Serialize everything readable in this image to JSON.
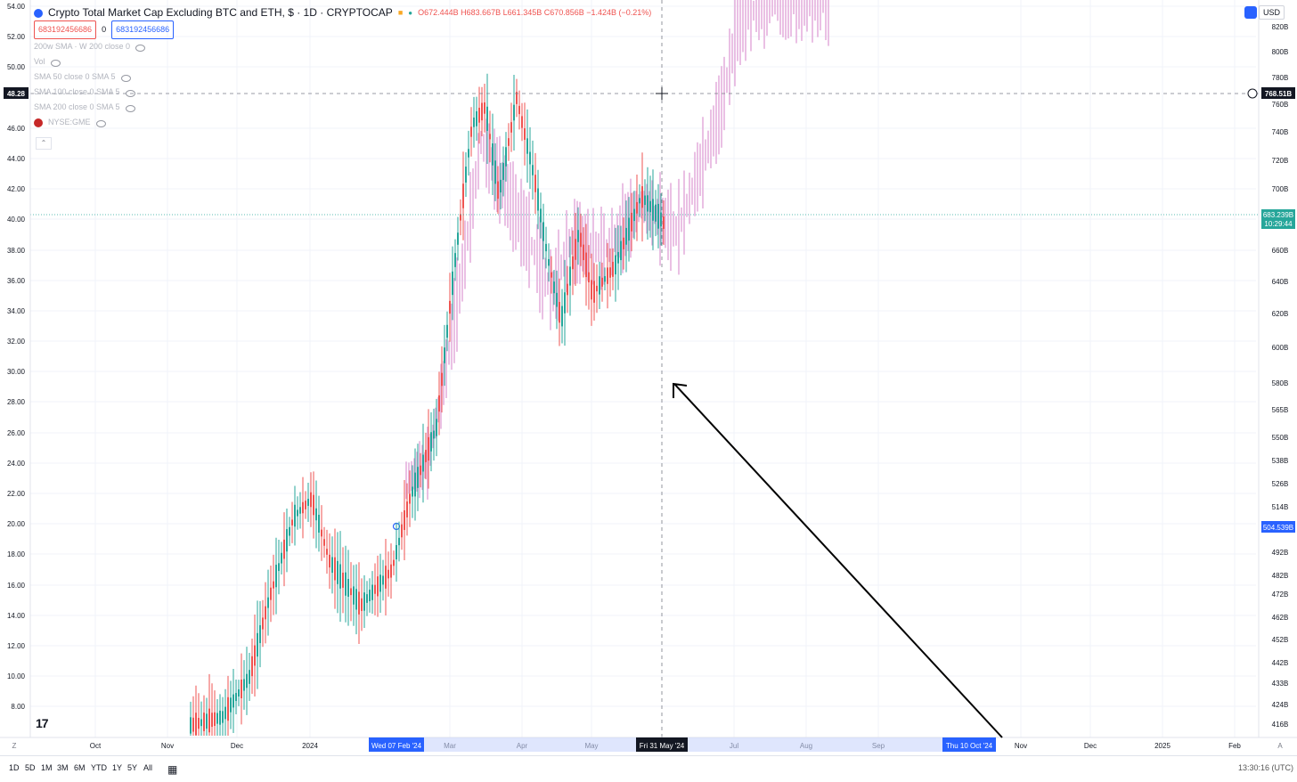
{
  "header": {
    "title": "Crypto Total Market Cap Excluding BTC and ETH, $ · 1D · CRYPTOCAP",
    "ohlc": "O672.444B H683.667B L661.345B C670.856B −1.424B (−0.21%)",
    "pill_left": "683192456686",
    "pill_mid": "0",
    "pill_right": "683192456686"
  },
  "indicators": [
    "200w SMA · W 200 close 0",
    "Vol",
    "SMA 50 close 0 SMA 5",
    "SMA 100 close 0 SMA 5",
    "SMA 200 close 0 SMA 5",
    "NYSE:GME"
  ],
  "left_axis": {
    "ticks": [
      "54.00",
      "52.00",
      "50.00",
      "46.00",
      "44.00",
      "42.00",
      "40.00",
      "38.00",
      "36.00",
      "34.00",
      "32.00",
      "30.00",
      "28.00",
      "26.00",
      "24.00",
      "22.00",
      "20.00",
      "18.00",
      "16.00",
      "14.00",
      "12.00",
      "10.00",
      "8.00"
    ],
    "crosshair_label": "48.28"
  },
  "right_axis": {
    "ticks": [
      "820B",
      "800B",
      "780B",
      "760B",
      "740B",
      "720B",
      "700B",
      "660B",
      "640B",
      "620B",
      "600B",
      "580B",
      "565B",
      "550B",
      "538B",
      "526B",
      "514B",
      "492B",
      "482B",
      "472B",
      "462B",
      "452B",
      "442B",
      "433B",
      "424B",
      "416B"
    ],
    "crosshair_label": "768.51B",
    "last_price": "683.239B",
    "countdown": "10:29:44",
    "marker": "504.539B",
    "currency": "USD"
  },
  "time_axis": {
    "labels": [
      "Oct",
      "Nov",
      "Dec",
      "2024",
      "Mar",
      "Apr",
      "May",
      "Jul",
      "Aug",
      "Sep",
      "Nov",
      "Dec",
      "2025",
      "Feb"
    ],
    "highlight_left": "Wed 07 Feb '24",
    "crosshair": "Fri 31 May '24",
    "highlight_right": "Thu 10 Oct '24"
  },
  "bottom_bar": {
    "ranges": [
      "1D",
      "5D",
      "1M",
      "3M",
      "6M",
      "YTD",
      "1Y",
      "5Y",
      "All"
    ],
    "clock": "13:30:16 (UTC)"
  },
  "colors": {
    "up": "#26a69a",
    "down": "#ef5350",
    "overlay": "#e1a6d8",
    "accent": "#2962ff"
  }
}
